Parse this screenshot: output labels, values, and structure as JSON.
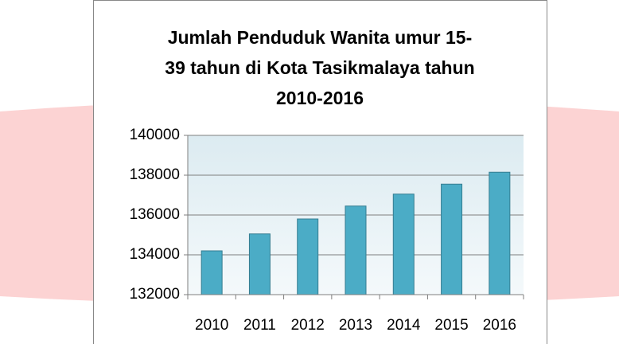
{
  "chart_data": {
    "type": "bar",
    "title": "Jumlah Penduduk Wanita umur 15-\n39 tahun di Kota Tasikmalaya tahun\n2010-2016",
    "categories": [
      "2010",
      "2011",
      "2012",
      "2013",
      "2014",
      "2015",
      "2016"
    ],
    "values": [
      134200,
      135050,
      135800,
      136450,
      137050,
      137550,
      138150
    ],
    "color": "#4bacc6",
    "ylim": [
      132000,
      140000
    ],
    "yticks": [
      132000,
      134000,
      136000,
      138000,
      140000
    ],
    "grid": true
  }
}
